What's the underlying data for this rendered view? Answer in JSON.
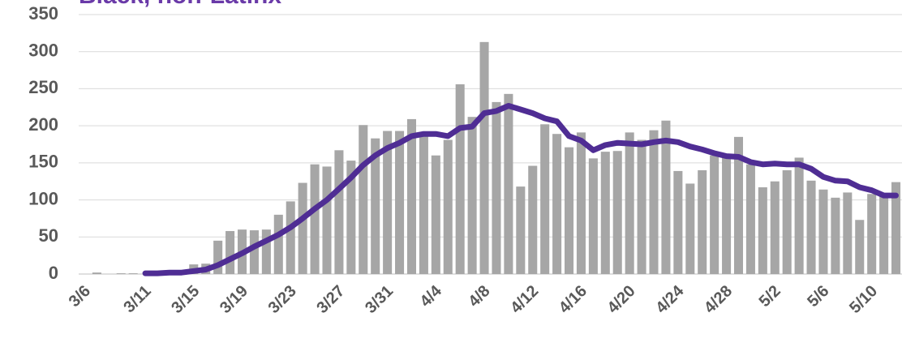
{
  "chart_data": {
    "type": "bar_line",
    "title": "Black, non-Latinx",
    "categories": [
      "3/6",
      null,
      null,
      null,
      null,
      "3/11",
      null,
      null,
      null,
      "3/15",
      null,
      null,
      null,
      "3/19",
      null,
      null,
      null,
      "3/23",
      null,
      null,
      null,
      "3/27",
      null,
      null,
      null,
      "3/31",
      null,
      null,
      null,
      "4/4",
      null,
      null,
      null,
      "4/8",
      null,
      null,
      null,
      "4/12",
      null,
      null,
      null,
      "4/16",
      null,
      null,
      null,
      "4/20",
      null,
      null,
      null,
      "4/24",
      null,
      null,
      null,
      "4/28",
      null,
      null,
      null,
      "5/2",
      null,
      null,
      null,
      "5/6",
      null,
      null,
      null,
      "5/10",
      null,
      null
    ],
    "series": [
      {
        "type": "bar",
        "color": "#a6a6a6",
        "values": [
          0,
          2,
          0,
          1,
          1,
          0,
          1,
          1,
          3,
          13,
          14,
          45,
          58,
          60,
          59,
          60,
          80,
          98,
          123,
          148,
          145,
          167,
          153,
          201,
          183,
          193,
          193,
          209,
          188,
          160,
          181,
          256,
          212,
          313,
          232,
          243,
          118,
          146,
          202,
          189,
          171,
          191,
          156,
          165,
          166,
          191,
          181,
          194,
          207,
          139,
          122,
          140,
          160,
          157,
          185,
          148,
          117,
          125,
          140,
          157,
          126,
          114,
          103,
          110,
          73,
          108,
          107,
          124
        ]
      },
      {
        "type": "line",
        "color": "#4f2d94",
        "values": [
          null,
          null,
          null,
          null,
          null,
          1,
          1,
          2,
          2,
          4,
          6,
          12,
          20,
          28,
          37,
          45,
          53,
          63,
          75,
          88,
          100,
          115,
          130,
          147,
          160,
          170,
          177,
          186,
          189,
          189,
          186,
          197,
          199,
          217,
          220,
          227,
          222,
          217,
          210,
          206,
          186,
          180,
          167,
          174,
          177,
          176,
          175,
          178,
          180,
          178,
          172,
          168,
          163,
          159,
          158,
          151,
          148,
          149,
          148,
          148,
          142,
          131,
          126,
          125,
          117,
          113,
          106,
          106
        ]
      }
    ],
    "ylim": [
      0,
      350
    ],
    "yticks": [
      0,
      50,
      100,
      150,
      200,
      250,
      300,
      350
    ],
    "grid": true
  }
}
